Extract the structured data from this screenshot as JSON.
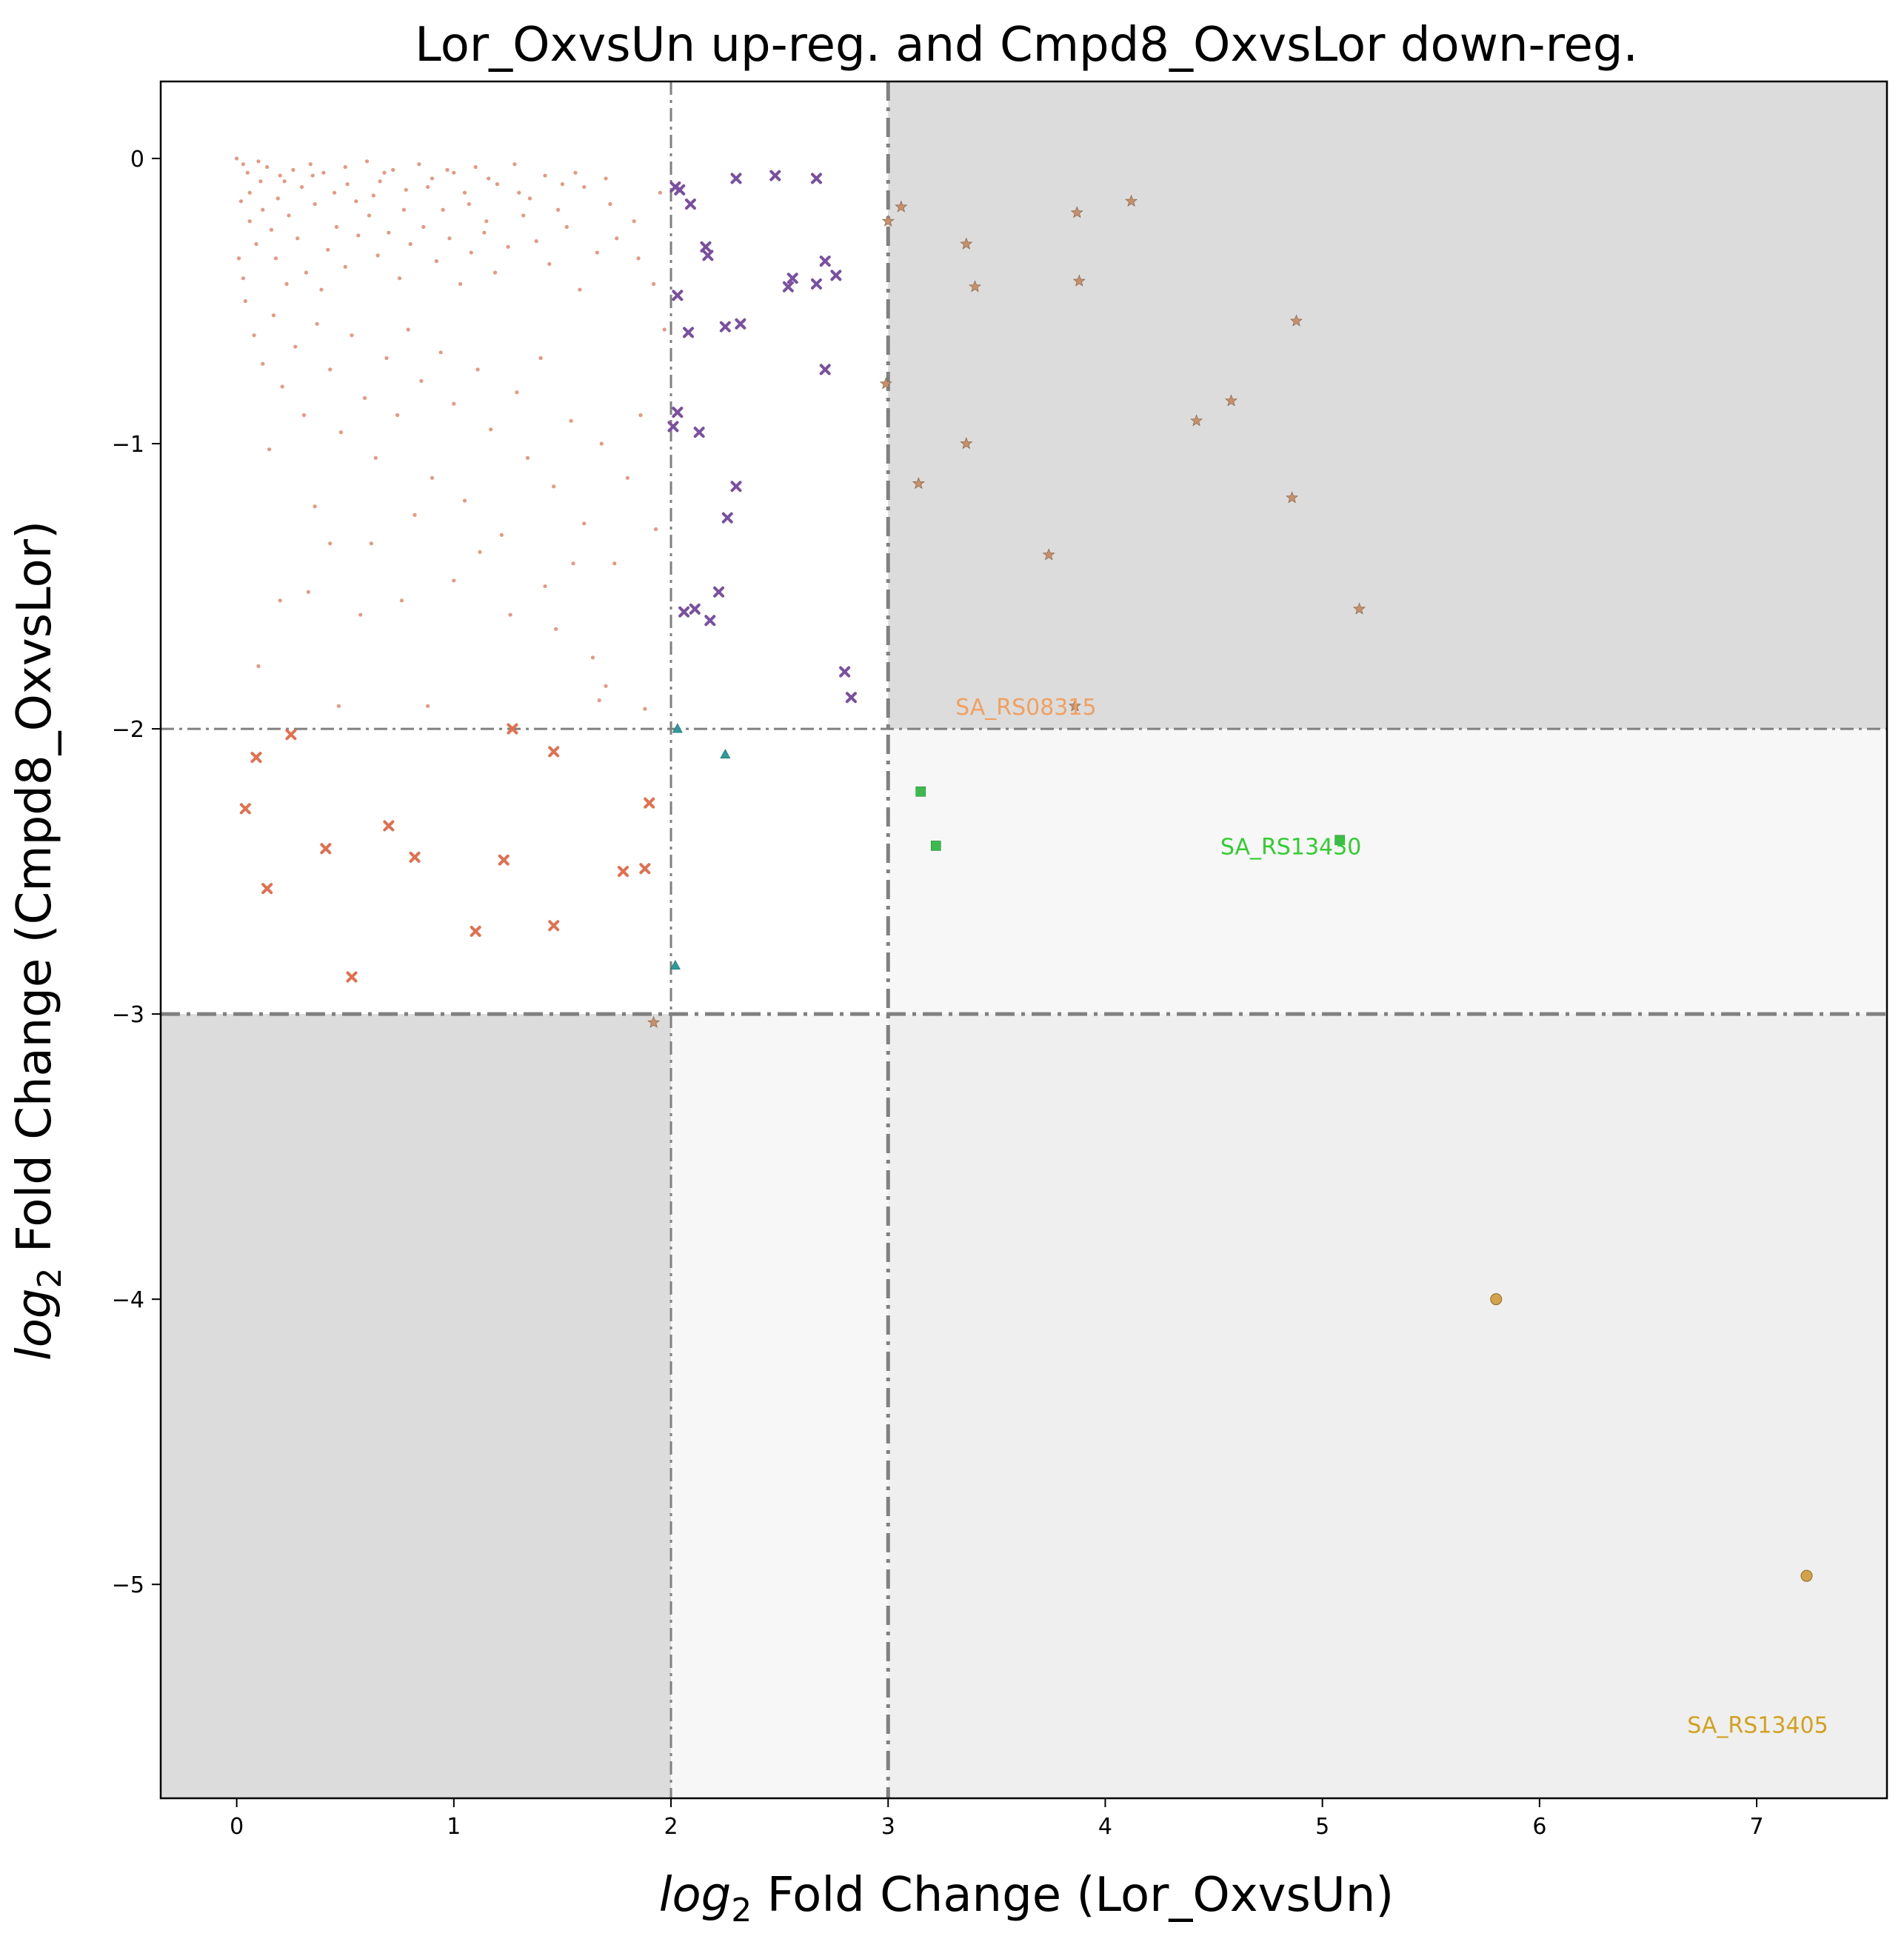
{
  "chart_data": {
    "type": "scatter",
    "title": "Lor_OxvsUn up-reg. and Cmpd8_OxvsLor down-reg.",
    "xlabel": {
      "italic": "log",
      "sub": "2",
      "rest": " Fold Change (Lor_OxvsUn)"
    },
    "ylabel": {
      "italic": "log",
      "sub": "2",
      "rest": " Fold Change (Cmpd8_OxvsLor)"
    },
    "xlim": [
      -0.35,
      7.6
    ],
    "ylim": [
      -5.75,
      0.27
    ],
    "xticks": [
      0,
      1,
      2,
      3,
      4,
      5,
      6,
      7
    ],
    "yticks": [
      0,
      -1,
      -2,
      -3,
      -4,
      -5
    ],
    "xtick_labels": [
      "0",
      "1",
      "2",
      "3",
      "4",
      "5",
      "6",
      "7"
    ],
    "ytick_labels": [
      "0",
      "−1",
      "−2",
      "−3",
      "−4",
      "−5"
    ],
    "grid": false,
    "legend": "none",
    "regions": [
      {
        "x": [
          3,
          7.6
        ],
        "y": [
          -2,
          0.27
        ],
        "color": "#dcdcdc"
      },
      {
        "x": [
          -0.35,
          2
        ],
        "y": [
          -5.75,
          -3
        ],
        "color": "#dcdcdc"
      },
      {
        "x": [
          3,
          7.6
        ],
        "y": [
          -3,
          -2
        ],
        "color": "#f7f7f7"
      },
      {
        "x": [
          2,
          3
        ],
        "y": [
          -5.75,
          -3
        ],
        "color": "#f7f7f7"
      },
      {
        "x": [
          3,
          7.6
        ],
        "y": [
          -5.75,
          -3
        ],
        "color": "#efefef"
      }
    ],
    "threshold_lines": [
      {
        "orientation": "vertical",
        "value": 2,
        "style": "thin"
      },
      {
        "orientation": "vertical",
        "value": 3,
        "style": "thick"
      },
      {
        "orientation": "horizontal",
        "value": -2,
        "style": "thin"
      },
      {
        "orientation": "horizontal",
        "value": -3,
        "style": "thick"
      }
    ],
    "series": [
      {
        "marker": "star",
        "color": "#c8906a",
        "points": [
          [
            3.0,
            -0.22
          ],
          [
            3.06,
            -0.17
          ],
          [
            3.36,
            -0.3
          ],
          [
            3.4,
            -0.45
          ],
          [
            3.87,
            -0.19
          ],
          [
            3.88,
            -0.43
          ],
          [
            4.12,
            -0.15
          ],
          [
            4.88,
            -0.57
          ],
          [
            2.99,
            -0.79
          ],
          [
            3.36,
            -1.0
          ],
          [
            4.42,
            -0.92
          ],
          [
            4.58,
            -0.85
          ],
          [
            3.14,
            -1.14
          ],
          [
            4.86,
            -1.19
          ],
          [
            3.74,
            -1.39
          ],
          [
            5.17,
            -1.58
          ],
          [
            3.86,
            -1.92
          ],
          [
            1.92,
            -3.03
          ]
        ]
      },
      {
        "marker": "x",
        "color": "#7b4fa0",
        "points": [
          [
            2.02,
            -0.1
          ],
          [
            2.04,
            -0.11
          ],
          [
            2.09,
            -0.16
          ],
          [
            2.3,
            -0.07
          ],
          [
            2.48,
            -0.06
          ],
          [
            2.67,
            -0.07
          ],
          [
            2.16,
            -0.31
          ],
          [
            2.17,
            -0.34
          ],
          [
            2.03,
            -0.48
          ],
          [
            2.54,
            -0.45
          ],
          [
            2.56,
            -0.42
          ],
          [
            2.67,
            -0.44
          ],
          [
            2.71,
            -0.36
          ],
          [
            2.76,
            -0.41
          ],
          [
            2.08,
            -0.61
          ],
          [
            2.25,
            -0.59
          ],
          [
            2.32,
            -0.58
          ],
          [
            2.71,
            -0.74
          ],
          [
            2.03,
            -0.89
          ],
          [
            2.01,
            -0.94
          ],
          [
            2.13,
            -0.96
          ],
          [
            2.3,
            -1.15
          ],
          [
            2.26,
            -1.26
          ],
          [
            2.06,
            -1.59
          ],
          [
            2.11,
            -1.58
          ],
          [
            2.18,
            -1.62
          ],
          [
            2.22,
            -1.52
          ],
          [
            2.8,
            -1.8
          ],
          [
            2.83,
            -1.89
          ]
        ]
      },
      {
        "marker": "x",
        "color": "#e07050",
        "points": [
          [
            0.09,
            -2.1
          ],
          [
            0.25,
            -2.02
          ],
          [
            0.04,
            -2.28
          ],
          [
            0.14,
            -2.56
          ],
          [
            0.41,
            -2.42
          ],
          [
            0.7,
            -2.34
          ],
          [
            0.82,
            -2.45
          ],
          [
            0.53,
            -2.87
          ],
          [
            1.1,
            -2.71
          ],
          [
            1.23,
            -2.46
          ],
          [
            1.27,
            -2.0
          ],
          [
            1.46,
            -2.08
          ],
          [
            1.46,
            -2.69
          ],
          [
            1.78,
            -2.5
          ],
          [
            1.88,
            -2.49
          ],
          [
            1.9,
            -2.26
          ]
        ]
      },
      {
        "marker": "triangle",
        "color": "#2e9a9a",
        "points": [
          [
            2.03,
            -2.0
          ],
          [
            2.25,
            -2.09
          ],
          [
            2.02,
            -2.83
          ]
        ]
      },
      {
        "marker": "square",
        "color": "#3dba4e",
        "points": [
          [
            3.15,
            -2.22
          ],
          [
            3.22,
            -2.41
          ],
          [
            5.08,
            -2.39
          ]
        ]
      },
      {
        "marker": "circle",
        "color": "#d4a24a",
        "points": [
          [
            5.8,
            -4.0
          ],
          [
            7.23,
            -4.97
          ]
        ]
      },
      {
        "marker": "dot",
        "color": "#e08060",
        "points": [
          [
            0.0,
            0.0
          ],
          [
            0.03,
            -0.02
          ],
          [
            0.05,
            -0.05
          ],
          [
            0.1,
            -0.01
          ],
          [
            0.14,
            -0.03
          ],
          [
            0.2,
            -0.06
          ],
          [
            0.22,
            -0.08
          ],
          [
            0.26,
            -0.04
          ],
          [
            0.3,
            -0.1
          ],
          [
            0.34,
            -0.02
          ],
          [
            0.4,
            -0.05
          ],
          [
            0.45,
            -0.12
          ],
          [
            0.5,
            -0.03
          ],
          [
            0.55,
            -0.15
          ],
          [
            0.6,
            -0.01
          ],
          [
            0.66,
            -0.08
          ],
          [
            0.72,
            -0.04
          ],
          [
            0.78,
            -0.11
          ],
          [
            0.84,
            -0.02
          ],
          [
            0.9,
            -0.07
          ],
          [
            0.95,
            -0.18
          ],
          [
            1.0,
            -0.05
          ],
          [
            1.05,
            -0.12
          ],
          [
            1.1,
            -0.03
          ],
          [
            1.15,
            -0.22
          ],
          [
            1.2,
            -0.09
          ],
          [
            1.28,
            -0.02
          ],
          [
            1.35,
            -0.14
          ],
          [
            1.42,
            -0.06
          ],
          [
            1.5,
            -0.09
          ],
          [
            1.6,
            -0.1
          ],
          [
            1.7,
            -0.07
          ],
          [
            0.02,
            -0.15
          ],
          [
            0.06,
            -0.22
          ],
          [
            0.09,
            -0.3
          ],
          [
            0.12,
            -0.18
          ],
          [
            0.16,
            -0.25
          ],
          [
            0.18,
            -0.35
          ],
          [
            0.24,
            -0.2
          ],
          [
            0.28,
            -0.28
          ],
          [
            0.32,
            -0.4
          ],
          [
            0.36,
            -0.16
          ],
          [
            0.42,
            -0.32
          ],
          [
            0.46,
            -0.24
          ],
          [
            0.5,
            -0.38
          ],
          [
            0.56,
            -0.27
          ],
          [
            0.61,
            -0.2
          ],
          [
            0.65,
            -0.34
          ],
          [
            0.7,
            -0.26
          ],
          [
            0.75,
            -0.42
          ],
          [
            0.8,
            -0.3
          ],
          [
            0.86,
            -0.24
          ],
          [
            0.92,
            -0.36
          ],
          [
            0.98,
            -0.28
          ],
          [
            1.03,
            -0.44
          ],
          [
            1.08,
            -0.33
          ],
          [
            1.14,
            -0.26
          ],
          [
            1.19,
            -0.4
          ],
          [
            1.25,
            -0.31
          ],
          [
            1.32,
            -0.2
          ],
          [
            1.38,
            -0.29
          ],
          [
            1.44,
            -0.37
          ],
          [
            1.52,
            -0.24
          ],
          [
            1.58,
            -0.46
          ],
          [
            1.66,
            -0.33
          ],
          [
            1.75,
            -0.28
          ],
          [
            1.85,
            -0.35
          ],
          [
            1.92,
            -0.44
          ],
          [
            0.04,
            -0.5
          ],
          [
            0.08,
            -0.62
          ],
          [
            0.12,
            -0.72
          ],
          [
            0.17,
            -0.55
          ],
          [
            0.21,
            -0.8
          ],
          [
            0.27,
            -0.66
          ],
          [
            0.31,
            -0.9
          ],
          [
            0.37,
            -0.58
          ],
          [
            0.43,
            -0.74
          ],
          [
            0.48,
            -0.96
          ],
          [
            0.53,
            -0.62
          ],
          [
            0.59,
            -0.84
          ],
          [
            0.64,
            -1.05
          ],
          [
            0.69,
            -0.7
          ],
          [
            0.74,
            -0.9
          ],
          [
            0.79,
            -0.6
          ],
          [
            0.85,
            -0.78
          ],
          [
            0.9,
            -1.12
          ],
          [
            0.94,
            -0.68
          ],
          [
            1.0,
            -0.86
          ],
          [
            1.05,
            -1.2
          ],
          [
            1.11,
            -0.74
          ],
          [
            1.17,
            -0.95
          ],
          [
            1.22,
            -1.32
          ],
          [
            1.29,
            -0.82
          ],
          [
            1.34,
            -1.05
          ],
          [
            1.4,
            -0.7
          ],
          [
            1.46,
            -1.15
          ],
          [
            1.54,
            -0.92
          ],
          [
            1.6,
            -1.28
          ],
          [
            1.68,
            -1.0
          ],
          [
            1.74,
            -1.42
          ],
          [
            1.8,
            -1.12
          ],
          [
            1.86,
            -0.9
          ],
          [
            1.93,
            -1.3
          ],
          [
            1.97,
            -0.6
          ],
          [
            0.1,
            -1.78
          ],
          [
            0.2,
            -1.55
          ],
          [
            0.33,
            -1.52
          ],
          [
            0.43,
            -1.35
          ],
          [
            0.57,
            -1.6
          ],
          [
            0.76,
            -1.55
          ],
          [
            0.88,
            -1.92
          ],
          [
            0.47,
            -1.92
          ],
          [
            1.0,
            -1.48
          ],
          [
            1.26,
            -1.6
          ],
          [
            1.42,
            -1.5
          ],
          [
            1.55,
            -1.42
          ],
          [
            1.64,
            -1.75
          ],
          [
            1.7,
            -1.85
          ],
          [
            1.88,
            -1.93
          ],
          [
            0.15,
            -1.02
          ],
          [
            0.36,
            -1.22
          ],
          [
            0.62,
            -1.35
          ],
          [
            0.82,
            -1.25
          ],
          [
            1.12,
            -1.38
          ],
          [
            1.47,
            -1.65
          ],
          [
            1.67,
            -1.9
          ],
          [
            0.01,
            -0.35
          ],
          [
            0.03,
            -0.42
          ],
          [
            0.06,
            -0.12
          ],
          [
            0.11,
            -0.08
          ],
          [
            0.19,
            -0.14
          ],
          [
            0.23,
            -0.44
          ],
          [
            0.35,
            -0.06
          ],
          [
            0.39,
            -0.46
          ],
          [
            0.51,
            -0.09
          ],
          [
            0.63,
            -0.13
          ],
          [
            0.68,
            -0.05
          ],
          [
            0.77,
            -0.18
          ],
          [
            0.88,
            -0.1
          ],
          [
            0.97,
            -0.04
          ],
          [
            1.07,
            -0.16
          ],
          [
            1.16,
            -0.07
          ],
          [
            1.3,
            -0.12
          ],
          [
            1.48,
            -0.18
          ],
          [
            1.56,
            -0.05
          ],
          [
            1.72,
            -0.16
          ],
          [
            1.83,
            -0.22
          ],
          [
            1.95,
            -0.12
          ]
        ]
      }
    ],
    "annotations": [
      {
        "text": "SA_RS08315",
        "x": 3.31,
        "y": -1.95,
        "color": "#f0a060"
      },
      {
        "text": "SA_RS13430",
        "x": 4.53,
        "y": -2.44,
        "color": "#33cc33"
      },
      {
        "text": "SA_RS13405",
        "x": 6.68,
        "y": -5.52,
        "color": "#d4a020"
      }
    ]
  }
}
